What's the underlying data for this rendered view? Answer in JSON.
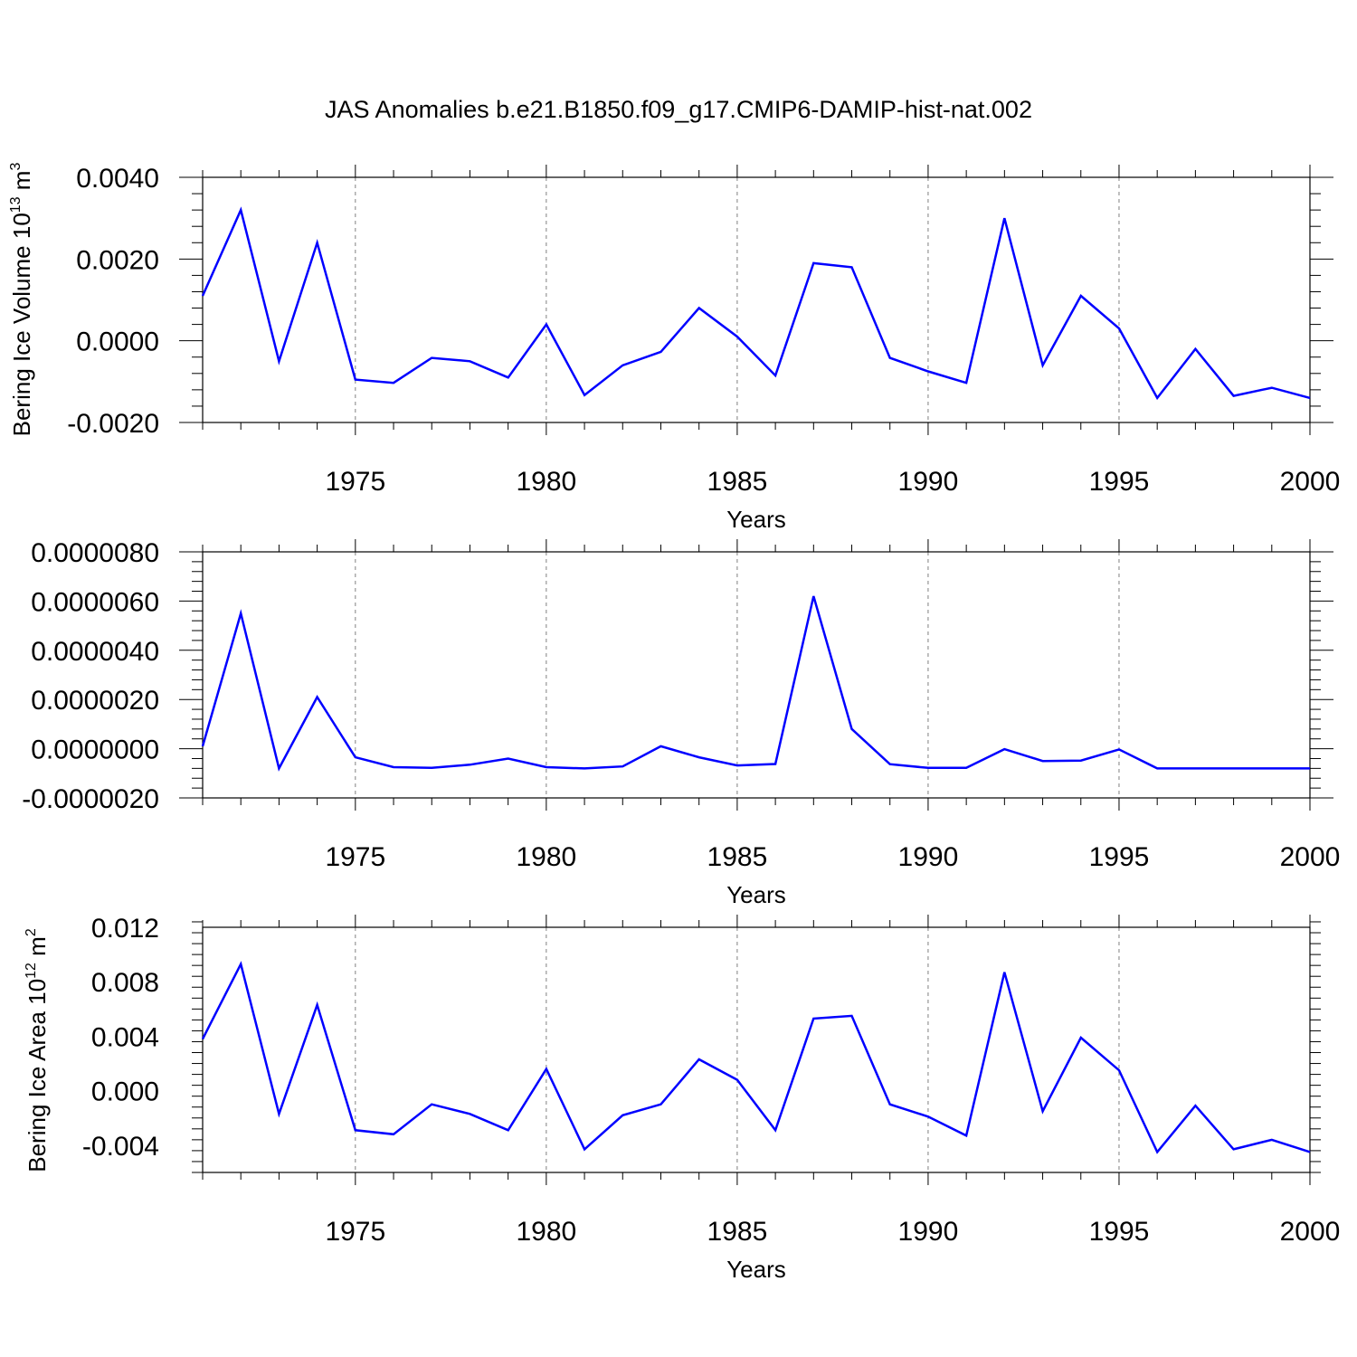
{
  "title": "JAS Anomalies b.e21.B1850.f09_g17.CMIP6-DAMIP-hist-nat.002",
  "colors": {
    "line": "#0000ff",
    "axis": "#000000",
    "grid": "#808080"
  },
  "chart_data": [
    {
      "type": "line",
      "name": "ice-volume-panel",
      "xlabel": "Years",
      "ylabel": "Bering Ice Volume 10",
      "ylabel_sup": "13",
      "ylabel_unit": "m",
      "ylabel_unit_sup": "3",
      "xlim": [
        1971,
        2000
      ],
      "ylim": [
        -0.002,
        0.004
      ],
      "x_ticks": [
        1975,
        1980,
        1985,
        1990,
        1995,
        2000
      ],
      "x_tick_labels": [
        "1975",
        "1980",
        "1985",
        "1990",
        "1995",
        "2000"
      ],
      "y_ticks": [
        -0.002,
        0.0,
        0.002,
        0.004
      ],
      "y_tick_labels": [
        "-0.0020",
        "0.0000",
        "0.0020",
        "0.0040"
      ],
      "grid": "vertical dashed at major x ticks",
      "series": [
        {
          "name": "Bering Ice Volume anomaly",
          "x": [
            1971,
            1972,
            1973,
            1974,
            1975,
            1976,
            1977,
            1978,
            1979,
            1980,
            1981,
            1982,
            1983,
            1984,
            1985,
            1986,
            1987,
            1988,
            1989,
            1990,
            1991,
            1992,
            1993,
            1994,
            1995,
            1996,
            1997,
            1998,
            1999,
            2000
          ],
          "values": [
            0.0011,
            0.0032,
            -0.0005,
            0.0024,
            -0.00095,
            -0.00103,
            -0.00042,
            -0.0005,
            -0.0009,
            0.0004,
            -0.00133,
            -0.0006,
            -0.00027,
            0.0008,
            0.0001,
            -0.00085,
            0.0019,
            0.0018,
            -0.00042,
            -0.00075,
            -0.00103,
            0.003,
            -0.0006,
            0.0011,
            0.0003,
            -0.0014,
            -0.0002,
            -0.00135,
            -0.00115,
            -0.0014
          ]
        }
      ]
    },
    {
      "type": "line",
      "name": "middle-panel",
      "xlabel": "Years",
      "ylabel": "",
      "xlim": [
        1971,
        2000
      ],
      "ylim": [
        -2e-06,
        8e-06
      ],
      "x_ticks": [
        1975,
        1980,
        1985,
        1990,
        1995,
        2000
      ],
      "x_tick_labels": [
        "1975",
        "1980",
        "1985",
        "1990",
        "1995",
        "2000"
      ],
      "y_ticks": [
        -2e-06,
        0.0,
        2e-06,
        4e-06,
        6e-06,
        8e-06
      ],
      "y_tick_labels": [
        "-0.0000020",
        "0.0000000",
        "0.0000020",
        "0.0000040",
        "0.0000060",
        "0.0000080"
      ],
      "grid": "vertical dashed at major x ticks",
      "series": [
        {
          "name": "anomaly",
          "x": [
            1971,
            1972,
            1973,
            1974,
            1975,
            1976,
            1977,
            1978,
            1979,
            1980,
            1981,
            1982,
            1983,
            1984,
            1985,
            1986,
            1987,
            1988,
            1989,
            1990,
            1991,
            1992,
            1993,
            1994,
            1995,
            1996,
            1997,
            1998,
            1999,
            2000
          ],
          "values": [
            1e-07,
            5.5e-06,
            -8e-07,
            2.1e-06,
            -3.5e-07,
            -7.5e-07,
            -7.8e-07,
            -6.5e-07,
            -4e-07,
            -7.5e-07,
            -8e-07,
            -7.2e-07,
            1e-07,
            -3.5e-07,
            -6.8e-07,
            -6.2e-07,
            6.2e-06,
            8e-07,
            -6.3e-07,
            -7.8e-07,
            -7.8e-07,
            -2e-08,
            -5e-07,
            -4.8e-07,
            -3e-08,
            -8e-07,
            -8e-07,
            -8e-07,
            -8e-07,
            -8e-07
          ]
        }
      ]
    },
    {
      "type": "line",
      "name": "ice-area-panel",
      "xlabel": "Years",
      "ylabel": "Bering Ice Area 10",
      "ylabel_sup": "12",
      "ylabel_unit": "m",
      "ylabel_unit_sup": "2",
      "xlim": [
        1971,
        2000
      ],
      "ylim": [
        -0.006,
        0.012
      ],
      "x_ticks": [
        1975,
        1980,
        1985,
        1990,
        1995,
        2000
      ],
      "x_tick_labels": [
        "1975",
        "1980",
        "1985",
        "1990",
        "1995",
        "2000"
      ],
      "y_ticks": [
        -0.004,
        0.0,
        0.004,
        0.008,
        0.012
      ],
      "y_tick_labels": [
        "-0.004",
        "0.000",
        "0.004",
        "0.008",
        "0.012"
      ],
      "grid": "vertical dashed at major x ticks",
      "series": [
        {
          "name": "Bering Ice Area anomaly",
          "x": [
            1971,
            1972,
            1973,
            1974,
            1975,
            1976,
            1977,
            1978,
            1979,
            1980,
            1981,
            1982,
            1983,
            1984,
            1985,
            1986,
            1987,
            1988,
            1989,
            1990,
            1991,
            1992,
            1993,
            1994,
            1995,
            1996,
            1997,
            1998,
            1999,
            2000
          ],
          "values": [
            0.0038,
            0.0093,
            -0.0017,
            0.0063,
            -0.0029,
            -0.0032,
            -0.001,
            -0.0017,
            -0.0029,
            0.0016,
            -0.0043,
            -0.0018,
            -0.001,
            0.0023,
            0.0008,
            -0.0029,
            0.0053,
            0.0055,
            -0.001,
            -0.0019,
            -0.0033,
            0.0087,
            -0.0015,
            0.0039,
            0.0015,
            -0.0045,
            -0.0011,
            -0.0043,
            -0.0036,
            -0.0045
          ]
        }
      ]
    }
  ]
}
